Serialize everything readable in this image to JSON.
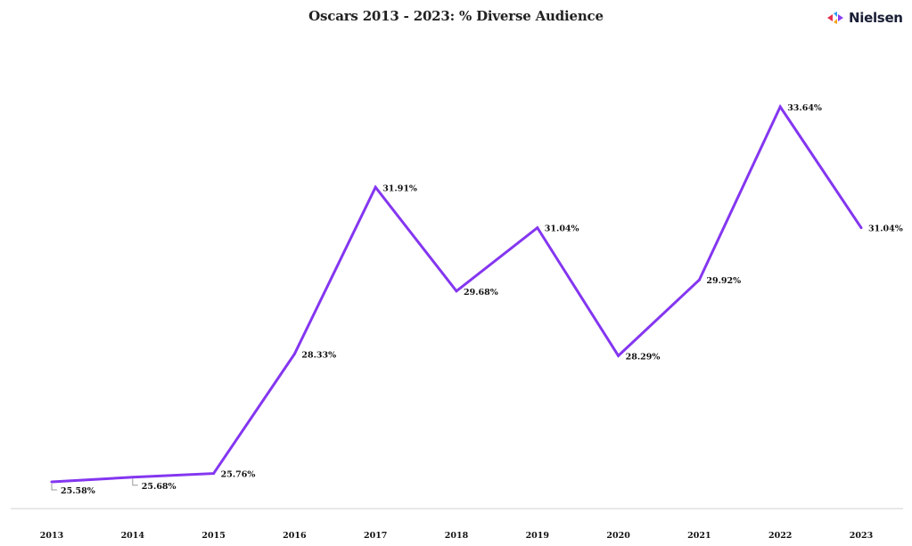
{
  "header": {
    "title": "Oscars 2013 - 2023: % Diverse Audience",
    "logo_text": "Nielsen"
  },
  "colors": {
    "line": "#8436f0",
    "axis": "#d0d0d0",
    "text": "#111111",
    "logo_red": "#e8304f",
    "logo_blue": "#2a9df4",
    "logo_orange": "#f6a21a",
    "logo_purple": "#8c3ff2"
  },
  "chart_data": {
    "type": "line",
    "title": "Oscars 2013 - 2023: % Diverse Audience",
    "xlabel": "",
    "ylabel": "",
    "categories": [
      "2013",
      "2014",
      "2015",
      "2016",
      "2017",
      "2018",
      "2019",
      "2020",
      "2021",
      "2022",
      "2023"
    ],
    "series": [
      {
        "values": [
          25.58,
          25.68,
          25.76,
          28.33,
          31.91,
          29.68,
          31.04,
          28.29,
          29.92,
          33.64,
          31.04
        ],
        "labels": [
          "25.58%",
          "25.68%",
          "25.76%",
          "28.33%",
          "31.91%",
          "29.68%",
          "31.04%",
          "28.29%",
          "29.92%",
          "33.64%",
          "31.04%"
        ]
      }
    ],
    "grid": false,
    "legend": "none"
  }
}
